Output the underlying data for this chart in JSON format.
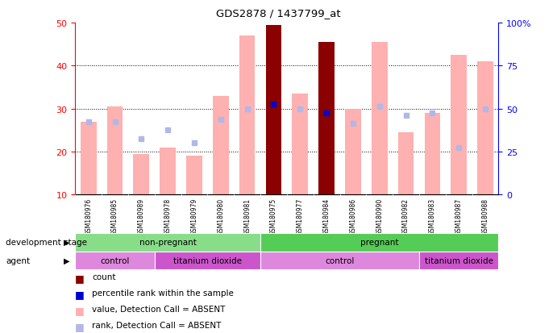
{
  "title": "GDS2878 / 1437799_at",
  "samples": [
    "GSM180976",
    "GSM180985",
    "GSM180989",
    "GSM180978",
    "GSM180979",
    "GSM180980",
    "GSM180981",
    "GSM180975",
    "GSM180977",
    "GSM180984",
    "GSM180986",
    "GSM180990",
    "GSM180982",
    "GSM180983",
    "GSM180987",
    "GSM180988"
  ],
  "bar_values": [
    27.0,
    30.5,
    19.5,
    21.0,
    19.0,
    33.0,
    47.0,
    49.5,
    33.5,
    45.5,
    30.0,
    45.5,
    24.5,
    29.0,
    42.5,
    41.0
  ],
  "rank_values": [
    27.0,
    27.0,
    23.0,
    25.0,
    22.0,
    27.5,
    30.0,
    31.0,
    30.0,
    29.0,
    26.5,
    30.5,
    28.5,
    29.0,
    21.0,
    30.0
  ],
  "count_bars": [
    false,
    false,
    false,
    false,
    false,
    false,
    false,
    true,
    false,
    true,
    false,
    false,
    false,
    false,
    false,
    false
  ],
  "percentile_present": [
    false,
    false,
    false,
    false,
    false,
    false,
    false,
    true,
    false,
    true,
    false,
    false,
    false,
    false,
    false,
    false
  ],
  "percentile_values": [
    0,
    0,
    0,
    0,
    0,
    0,
    0,
    31.0,
    0,
    29.0,
    0,
    0,
    0,
    0,
    0,
    0
  ],
  "bar_color_absent": "#ffb0b0",
  "bar_color_count": "#8b0000",
  "rank_color_absent": "#b0b8e8",
  "percentile_color_present": "#0000cc",
  "ylim_left": [
    10,
    50
  ],
  "ylim_right": [
    0,
    100
  ],
  "yticks_left": [
    10,
    20,
    30,
    40,
    50
  ],
  "yticks_right": [
    0,
    25,
    50,
    75,
    100
  ],
  "ytick_labels_right": [
    "0",
    "25",
    "50",
    "75",
    "100%"
  ],
  "grid_lines": [
    20,
    30,
    40
  ],
  "groups_dev": [
    {
      "label": "non-pregnant",
      "start": 0,
      "end": 6,
      "color": "#88dd88"
    },
    {
      "label": "pregnant",
      "start": 7,
      "end": 15,
      "color": "#55cc55"
    }
  ],
  "groups_agent": [
    {
      "label": "control",
      "start": 0,
      "end": 2,
      "color": "#dd88dd"
    },
    {
      "label": "titanium dioxide",
      "start": 3,
      "end": 6,
      "color": "#cc55cc"
    },
    {
      "label": "control",
      "start": 7,
      "end": 12,
      "color": "#dd88dd"
    },
    {
      "label": "titanium dioxide",
      "start": 13,
      "end": 15,
      "color": "#cc55cc"
    }
  ],
  "legend_items": [
    {
      "label": "count",
      "color": "#8b0000"
    },
    {
      "label": "percentile rank within the sample",
      "color": "#0000cc"
    },
    {
      "label": "value, Detection Call = ABSENT",
      "color": "#ffb0b0"
    },
    {
      "label": "rank, Detection Call = ABSENT",
      "color": "#b0b8e8"
    }
  ],
  "label_dev": "development stage",
  "label_agent": "agent",
  "xtick_bg": "#cccccc"
}
